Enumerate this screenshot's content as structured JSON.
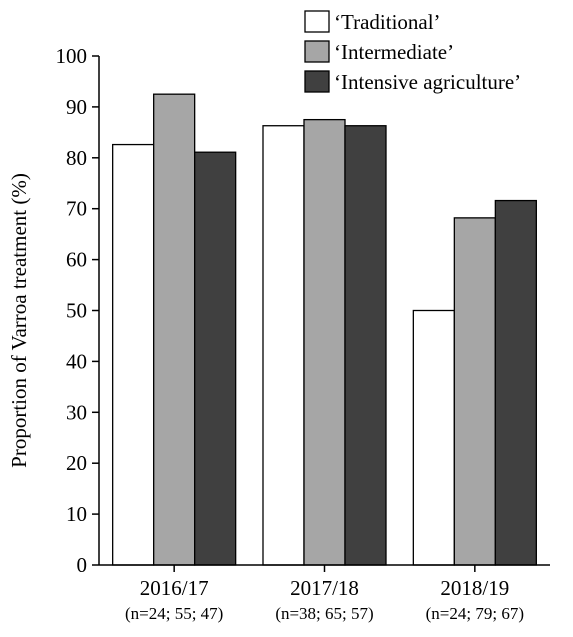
{
  "chart_data": {
    "type": "bar",
    "title": "",
    "xlabel": "",
    "ylabel": "Proportion of Varroa treatment (%)",
    "ylim": [
      0,
      100
    ],
    "yticks": [
      0,
      10,
      20,
      30,
      40,
      50,
      60,
      70,
      80,
      90,
      100
    ],
    "grid": false,
    "legend_position": "top-right",
    "categories": [
      "2016/17",
      "2017/18",
      "2018/19"
    ],
    "category_notes": [
      "(n=24; 55; 47)",
      "(n=38; 65; 57)",
      "(n=24; 79; 67)"
    ],
    "series": [
      {
        "name": "‘Traditional’",
        "color": "#ffffff",
        "values": [
          82.6,
          86.3,
          50.0
        ]
      },
      {
        "name": "‘Intermediate’",
        "color": "#a6a6a6",
        "values": [
          92.5,
          87.5,
          68.2
        ]
      },
      {
        "name": "‘Intensive agriculture’",
        "color": "#404040",
        "values": [
          81.1,
          86.3,
          71.6
        ]
      }
    ]
  }
}
